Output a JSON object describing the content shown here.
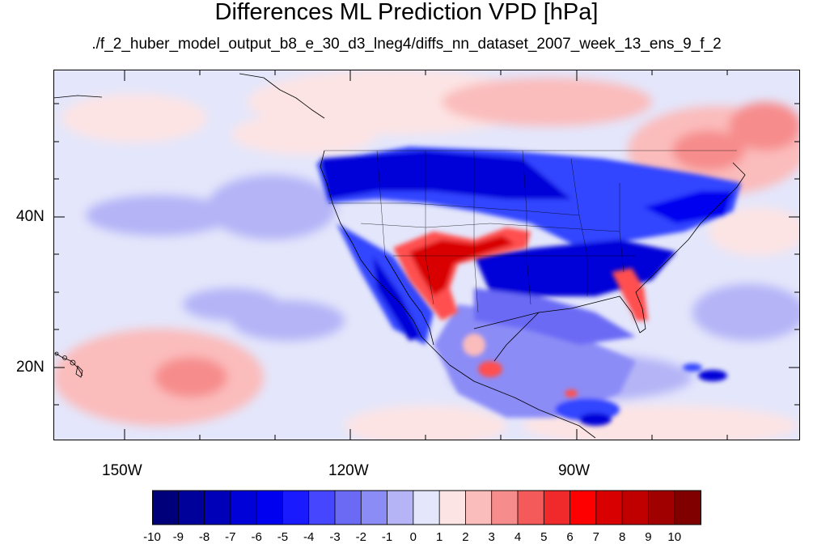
{
  "title": "Differences ML Prediction VPD [hPa]",
  "subtitle": "./f_2_huber_model_output_b8_e_30_d3_lneg4/diffs_nn_dataset_2007_week_13_ens_9_f_2",
  "map": {
    "lat_labels": [
      "40N",
      "20N"
    ],
    "lon_labels": [
      "150W",
      "120W",
      "90W"
    ],
    "colors": {
      "ocean_base": "#e4e6fb",
      "land_neg_strong": "#0000d8",
      "land_neg_mid": "#3344ff",
      "land_neg_light": "#8c8cf7",
      "pos_strong": "#d80000",
      "pos_mid": "#ff5050",
      "pos_light": "#fbbcbc",
      "pos_faint": "#fde4e4"
    }
  },
  "colorbar": {
    "labels": [
      "-10",
      "-9",
      "-8",
      "-7",
      "-6",
      "-5",
      "-4",
      "-3",
      "-2",
      "-1",
      "0",
      "1",
      "2",
      "3",
      "4",
      "5",
      "6",
      "7",
      "8",
      "9",
      "10"
    ],
    "colors": [
      "#00007a",
      "#00009a",
      "#0000b8",
      "#0000d8",
      "#0000f0",
      "#1a1aff",
      "#4646ff",
      "#6a6af5",
      "#8c8cf7",
      "#b4b4f7",
      "#e4e6fb",
      "#fde4e4",
      "#fbbcbc",
      "#f78c8c",
      "#f55a5a",
      "#f02a2a",
      "#ff0000",
      "#d80000",
      "#c00000",
      "#a00000",
      "#800000"
    ]
  }
}
